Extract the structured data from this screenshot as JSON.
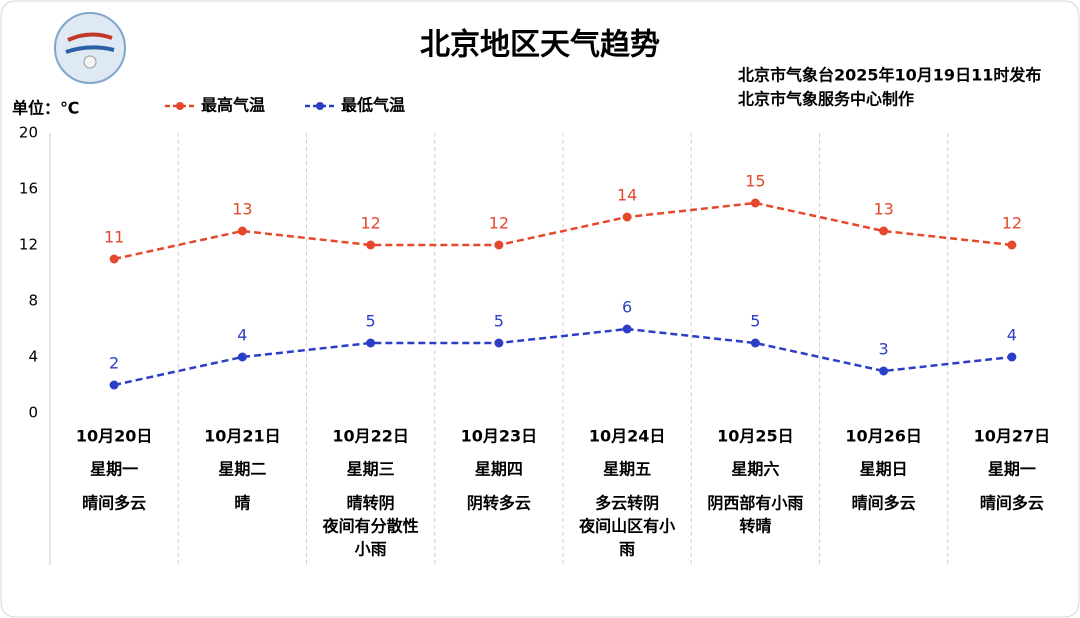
{
  "chart_data": {
    "type": "line",
    "title": "北京地区天气趋势",
    "notes": [
      "北京市气象台2025年10月19日11时发布",
      "北京市气象服务中心制作"
    ],
    "unit_label": "单位：℃",
    "categories": [
      "10月20日",
      "10月21日",
      "10月22日",
      "10月23日",
      "10月24日",
      "10月25日",
      "10月26日",
      "10月27日"
    ],
    "weekdays": [
      "星期一",
      "星期二",
      "星期三",
      "星期四",
      "星期五",
      "星期六",
      "星期日",
      "星期一"
    ],
    "weather": [
      [
        "晴间多云"
      ],
      [
        "晴"
      ],
      [
        "晴转阴",
        "夜间有分散性",
        "小雨"
      ],
      [
        "阴转多云"
      ],
      [
        "多云转阴",
        "夜间山区有小",
        "雨"
      ],
      [
        "阴西部有小雨",
        "转晴"
      ],
      [
        "晴间多云"
      ],
      [
        "晴间多云"
      ]
    ],
    "series": [
      {
        "name": "最高气温",
        "color": "#e6482c",
        "values": [
          11,
          13,
          12,
          12,
          14,
          15,
          13,
          12
        ]
      },
      {
        "name": "最低气温",
        "color": "#2b3fc6",
        "values": [
          2,
          4,
          5,
          5,
          6,
          5,
          3,
          4
        ]
      }
    ],
    "ylim": [
      0,
      20
    ],
    "yticks": [
      0,
      4,
      8,
      12,
      16,
      20
    ]
  }
}
